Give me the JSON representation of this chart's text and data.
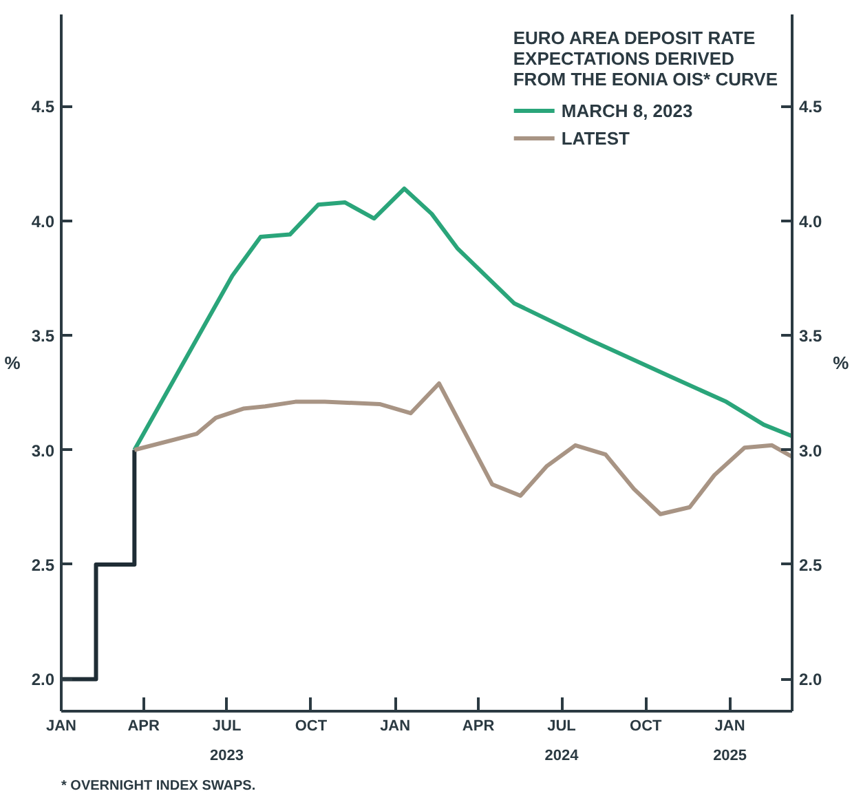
{
  "chart_data": {
    "type": "line",
    "legend_title": "EURO AREA DEPOSIT RATE\nEXPECTATIONS DERIVED\nFROM THE EONIA OIS* CURVE",
    "ylabel": "%",
    "y2label": "%",
    "series": [
      {
        "color": "#1f2d35",
        "x": [
          "2023-01-01",
          "2023-02-08",
          "2023-02-08",
          "2023-03-22",
          "2023-03-22"
        ],
        "values": [
          2.0,
          2.0,
          2.5,
          2.5,
          3.0
        ]
      },
      {
        "name": "MARCH 8, 2023",
        "color": "#2aa57a",
        "x": [
          "2023-03-22",
          "2023-07-07",
          "2023-08-07",
          "2023-09-08",
          "2023-10-09",
          "2023-11-07",
          "2023-12-09",
          "2024-01-11",
          "2024-02-10",
          "2024-03-09",
          "2024-05-10",
          "2024-08-01",
          "2024-10-28",
          "2024-12-28",
          "2025-02-07",
          "2025-03-10"
        ],
        "values": [
          3.0,
          3.76,
          3.93,
          3.94,
          4.07,
          4.08,
          4.01,
          4.14,
          4.03,
          3.88,
          3.64,
          3.48,
          3.32,
          3.21,
          3.11,
          3.06
        ]
      },
      {
        "name": "LATEST",
        "color": "#a89484",
        "x": [
          "2023-03-22",
          "2023-05-29",
          "2023-06-19",
          "2023-07-19",
          "2023-08-12",
          "2023-09-14",
          "2023-10-16",
          "2023-12-15",
          "2024-01-18",
          "2024-02-18",
          "2024-04-16",
          "2024-05-17",
          "2024-06-15",
          "2024-07-16",
          "2024-08-18",
          "2024-09-18",
          "2024-10-17",
          "2024-11-18",
          "2024-12-15",
          "2025-01-17",
          "2025-02-16",
          "2025-03-10"
        ],
        "values": [
          3.0,
          3.07,
          3.14,
          3.18,
          3.19,
          3.21,
          3.21,
          3.2,
          3.16,
          3.29,
          2.85,
          2.8,
          2.93,
          3.02,
          2.98,
          2.83,
          2.72,
          2.75,
          2.89,
          3.01,
          3.02,
          2.97
        ]
      }
    ],
    "xlim": [
      "2023-01-01",
      "2025-03-10"
    ],
    "xticks": [
      {
        "value": "2023-01-01",
        "label": "JAN"
      },
      {
        "value": "2023-04-01",
        "label": "APR"
      },
      {
        "value": "2023-07-01",
        "label": "JUL\n2023"
      },
      {
        "value": "2023-10-01",
        "label": "OCT"
      },
      {
        "value": "2024-01-01",
        "label": "JAN"
      },
      {
        "value": "2024-04-01",
        "label": "APR"
      },
      {
        "value": "2024-07-01",
        "label": "JUL\n2024"
      },
      {
        "value": "2024-10-01",
        "label": "OCT"
      },
      {
        "value": "2025-01-01",
        "label": "JAN\n2025"
      }
    ],
    "ylim": [
      1.86,
      4.9
    ],
    "yticks": [
      {
        "value": 2.0,
        "label": "2.0"
      },
      {
        "value": 2.5,
        "label": "2.5"
      },
      {
        "value": 3.0,
        "label": "3.0"
      },
      {
        "value": 3.5,
        "label": "3.5"
      },
      {
        "value": 4.0,
        "label": "4.0"
      },
      4.5
    ],
    "y2lim": [
      1.86,
      4.9
    ],
    "y2ticks": [
      {
        "value": 2.0,
        "label": "2.0"
      },
      {
        "value": 2.5,
        "label": "2.5"
      },
      {
        "value": 3.0,
        "label": "3.0"
      },
      {
        "value": 3.5,
        "label": "3.5"
      },
      {
        "value": 4.0,
        "label": "4.0"
      },
      4.5
    ],
    "annotations": [
      "* OVERNIGHT INDEX SWAPS."
    ],
    "grid": false,
    "legend": "top right",
    "marker": "none",
    "line_style": "solid"
  }
}
